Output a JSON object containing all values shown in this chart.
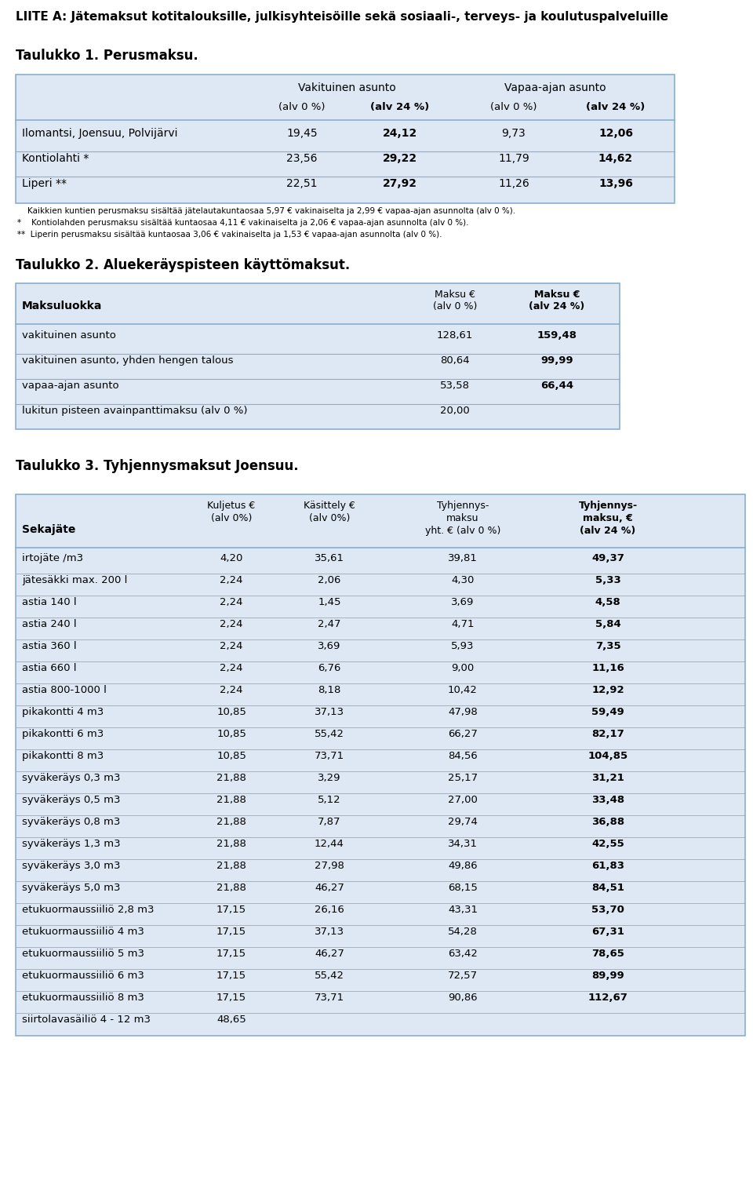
{
  "title": "LIITE A: Jätemaksut kotitalouksille, julkisyhteisöille sekä sosiaali-, terveys- ja koulutuspalveluille",
  "table1_title": "Taulukko 1. Perusmaksu.",
  "table1_header1": "Vakituinen asunto",
  "table1_header2": "Vapaa-ajan asunto",
  "table1_subheader": [
    "(alv 0 %)",
    "(alv 24 %)",
    "(alv 0 %)",
    "(alv 24 %)"
  ],
  "table1_rows": [
    [
      "Ilomantsi, Joensuu, Polvijärvi",
      "19,45",
      "24,12",
      "9,73",
      "12,06"
    ],
    [
      "Kontiolahti *",
      "23,56",
      "29,22",
      "11,79",
      "14,62"
    ],
    [
      "Liperi **",
      "22,51",
      "27,92",
      "11,26",
      "13,96"
    ]
  ],
  "table1_footnotes": [
    "    Kaikkien kuntien perusmaksu sisältää jätelautakuntaosaa 5,97 € vakinaiselta ja 2,99 € vapaa-ajan asunnolta (alv 0 %).",
    "*    Kontiolahden perusmaksu sisältää kuntaosaa 4,11 € vakinaiselta ja 2,06 € vapaa-ajan asunnolta (alv 0 %).",
    "**  Liperin perusmaksu sisältää kuntaosaa 3,06 € vakinaiselta ja 1,53 € vapaa-ajan asunnolta (alv 0 %)."
  ],
  "table2_title": "Taulukko 2. Aluekeräyspisteen käyttömaksut.",
  "table2_rows": [
    [
      "vakituinen asunto",
      "128,61",
      "159,48"
    ],
    [
      "vakituinen asunto, yhden hengen talous",
      "80,64",
      "99,99"
    ],
    [
      "vapaa-ajan asunto",
      "53,58",
      "66,44"
    ],
    [
      "lukitun pisteen avainpanttimaksu (alv 0 %)",
      "20,00",
      ""
    ]
  ],
  "table3_title": "Taulukko 3. Tyhjennysmaksut Joensuu.",
  "table3_col_headers": [
    "Sekajäte",
    "Kuljetus €\n(alv 0%)",
    "Käsittely €\n(alv 0%)",
    "Tyhjennys-\nmaksu\nyht. € (alv 0 %)",
    "Tyhjennys-\nmaksu, €\n(alv 24 %)"
  ],
  "table3_rows": [
    [
      "irtojäte /m3",
      "4,20",
      "35,61",
      "39,81",
      "49,37"
    ],
    [
      "jätesäkki max. 200 l",
      "2,24",
      "2,06",
      "4,30",
      "5,33"
    ],
    [
      "astia 140 l",
      "2,24",
      "1,45",
      "3,69",
      "4,58"
    ],
    [
      "astia 240 l",
      "2,24",
      "2,47",
      "4,71",
      "5,84"
    ],
    [
      "astia 360 l",
      "2,24",
      "3,69",
      "5,93",
      "7,35"
    ],
    [
      "astia 660 l",
      "2,24",
      "6,76",
      "9,00",
      "11,16"
    ],
    [
      "astia 800-1000 l",
      "2,24",
      "8,18",
      "10,42",
      "12,92"
    ],
    [
      "pikakontti 4 m3",
      "10,85",
      "37,13",
      "47,98",
      "59,49"
    ],
    [
      "pikakontti 6 m3",
      "10,85",
      "55,42",
      "66,27",
      "82,17"
    ],
    [
      "pikakontti 8 m3",
      "10,85",
      "73,71",
      "84,56",
      "104,85"
    ],
    [
      "syväkeräys 0,3 m3",
      "21,88",
      "3,29",
      "25,17",
      "31,21"
    ],
    [
      "syväkeräys 0,5 m3",
      "21,88",
      "5,12",
      "27,00",
      "33,48"
    ],
    [
      "syväkeräys 0,8 m3",
      "21,88",
      "7,87",
      "29,74",
      "36,88"
    ],
    [
      "syväkeräys 1,3 m3",
      "21,88",
      "12,44",
      "34,31",
      "42,55"
    ],
    [
      "syväkeräys 3,0 m3",
      "21,88",
      "27,98",
      "49,86",
      "61,83"
    ],
    [
      "syväkeräys 5,0 m3",
      "21,88",
      "46,27",
      "68,15",
      "84,51"
    ],
    [
      "etukuormaussiiliö 2,8 m3",
      "17,15",
      "26,16",
      "43,31",
      "53,70"
    ],
    [
      "etukuormaussiiliö 4 m3",
      "17,15",
      "37,13",
      "54,28",
      "67,31"
    ],
    [
      "etukuormaussiiliö 5 m3",
      "17,15",
      "46,27",
      "63,42",
      "78,65"
    ],
    [
      "etukuormaussiiliö 6 m3",
      "17,15",
      "55,42",
      "72,57",
      "89,99"
    ],
    [
      "etukuormaussiiliö 8 m3",
      "17,15",
      "73,71",
      "90,86",
      "112,67"
    ],
    [
      "siirtolavasäiliö 4 - 12 m3",
      "48,65",
      "",
      "",
      ""
    ]
  ],
  "bg_color": "#dde8f4",
  "border_color": "#8aafce",
  "white": "#ffffff"
}
